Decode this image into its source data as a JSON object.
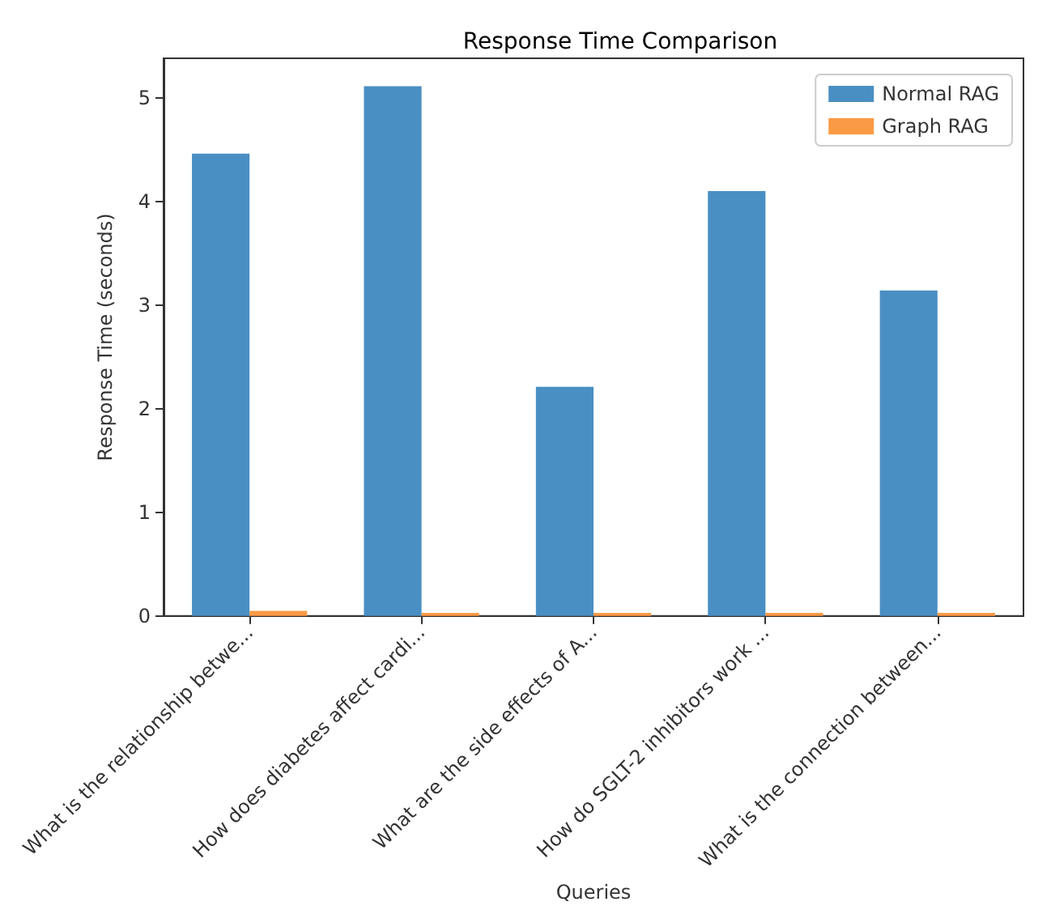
{
  "chart_data": {
    "type": "bar",
    "title": "Response Time Comparison",
    "xlabel": "Queries",
    "ylabel": "Response Time (seconds)",
    "categories": [
      "What is the relationship betwe...",
      "How does diabetes affect cardi...",
      "What are the side effects of A...",
      "How do SGLT-2 inhibitors work ...",
      "What is the connection between..."
    ],
    "series": [
      {
        "name": "Normal RAG",
        "color": "#4a8fc3",
        "values": [
          4.46,
          5.11,
          2.21,
          4.1,
          3.14
        ]
      },
      {
        "name": "Graph RAG",
        "color": "#fb9a44",
        "values": [
          0.05,
          0.03,
          0.03,
          0.03,
          0.03
        ]
      }
    ],
    "ylim": [
      0,
      5.38
    ],
    "yticks": [
      0,
      1,
      2,
      3,
      4,
      5
    ],
    "grid": false,
    "legend": "top right"
  }
}
